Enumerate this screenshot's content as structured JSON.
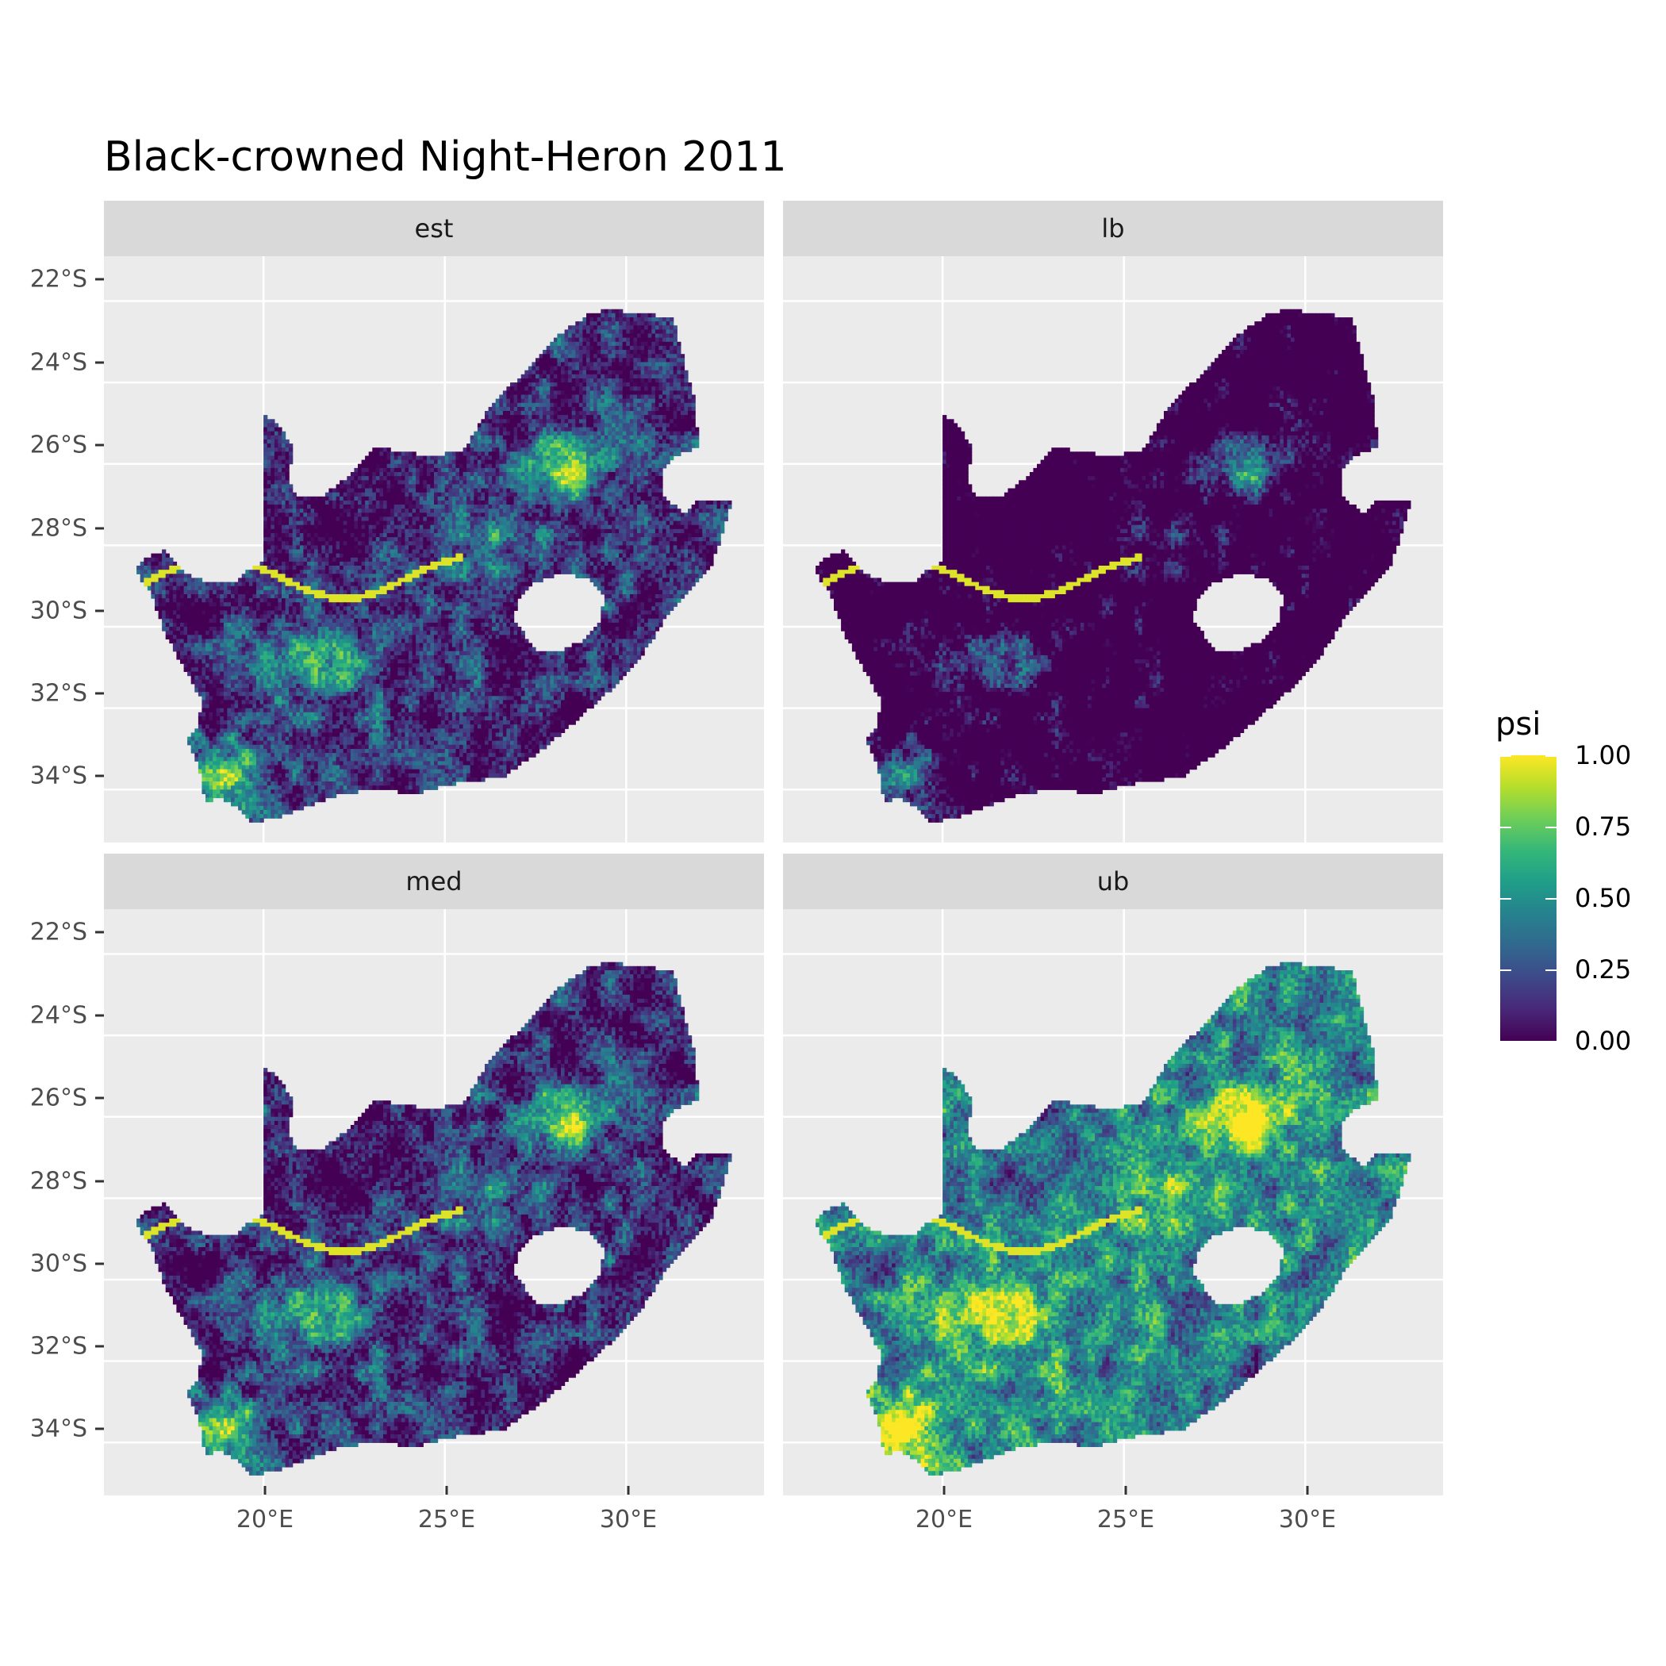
{
  "title": "Black-crowned Night-Heron 2011",
  "panels": [
    {
      "label": "est",
      "intensity": 0.55
    },
    {
      "label": "lb",
      "intensity": 0.25
    },
    {
      "label": "med",
      "intensity": 0.55
    },
    {
      "label": "ub",
      "intensity": 0.85
    }
  ],
  "y_axis": {
    "labels": [
      "22°S",
      "24°S",
      "26°S",
      "28°S",
      "30°S",
      "32°S",
      "34°S"
    ],
    "values": [
      -22,
      -24,
      -26,
      -28,
      -30,
      -32,
      -34
    ]
  },
  "x_axis": {
    "labels": [
      "20°E",
      "25°E",
      "30°E"
    ],
    "values": [
      20,
      25,
      30
    ]
  },
  "legend": {
    "title": "psi",
    "labels": [
      "1.00",
      "0.75",
      "0.50",
      "0.25",
      "0.00"
    ],
    "values": [
      1.0,
      0.75,
      0.5,
      0.25,
      0.0
    ],
    "colormap": "viridis",
    "colors": [
      "#440154",
      "#3b528b",
      "#21918c",
      "#5ec962",
      "#fde725"
    ]
  },
  "colors": {
    "panel_bg": "#ebebeb",
    "strip_bg": "#d9d9d9",
    "grid": "#ffffff"
  }
}
